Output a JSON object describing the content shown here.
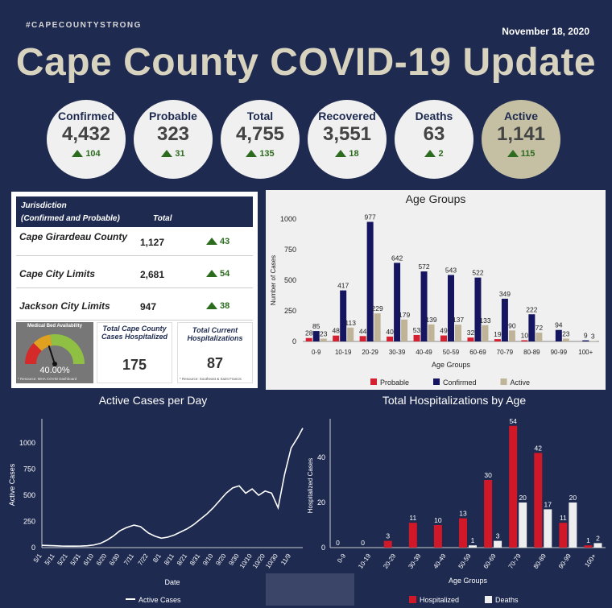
{
  "hashtag": "#CAPECOUNTYSTRONG",
  "date": "November 18, 2020",
  "title": "Cape County COVID-19 Update",
  "stats": [
    {
      "label": "Confirmed",
      "value": "4,432",
      "change": "104"
    },
    {
      "label": "Probable",
      "value": "323",
      "change": "31"
    },
    {
      "label": "Total",
      "value": "4,755",
      "change": "135"
    },
    {
      "label": "Recovered",
      "value": "3,551",
      "change": "18"
    },
    {
      "label": "Deaths",
      "value": "63",
      "change": "2"
    },
    {
      "label": "Active",
      "value": "1,141",
      "change": "115"
    }
  ],
  "jurisdiction": {
    "header1": "Jurisdiction",
    "header2": "(Confirmed and Probable)",
    "header_total": "Total",
    "rows": [
      {
        "name": "Cape Girardeau County",
        "total": "1,127",
        "change": "43"
      },
      {
        "name": "Cape City Limits",
        "total": "2,681",
        "change": "54"
      },
      {
        "name": "Jackson City Limits",
        "total": "947",
        "change": "38"
      }
    ],
    "gauge": {
      "title": "Medical Bed Availability",
      "value": "40.00%",
      "fraction": 0.4,
      "source": "* Resource: MHA COVID Dashboard"
    },
    "hosp_cape": {
      "title": "Total Cape County Cases Hospitalized",
      "value": "175"
    },
    "hosp_current": {
      "title": "Total Current Hospitalizations",
      "value": "87",
      "source": "* Resource: Southeast & Saint Francis"
    }
  },
  "chart_data": [
    {
      "type": "bar",
      "title": "Age Groups",
      "xlabel": "Age Groups",
      "ylabel": "Number of Cases",
      "ylim": [
        0,
        1000
      ],
      "yticks": [
        0,
        250,
        500,
        750,
        1000
      ],
      "categories": [
        "0-9",
        "10-19",
        "20-29",
        "30-39",
        "40-49",
        "50-59",
        "60-69",
        "70-79",
        "80-89",
        "90-99",
        "100+"
      ],
      "series": [
        {
          "name": "Probable",
          "color": "#d42030",
          "values": [
            28,
            48,
            44,
            40,
            53,
            49,
            32,
            19,
            10,
            null,
            null
          ]
        },
        {
          "name": "Confirmed",
          "color": "#161660",
          "values": [
            85,
            417,
            977,
            642,
            572,
            543,
            522,
            349,
            222,
            94,
            9
          ]
        },
        {
          "name": "Active",
          "color": "#c0b498",
          "values": [
            23,
            113,
            229,
            179,
            139,
            137,
            133,
            90,
            72,
            23,
            3
          ]
        }
      ],
      "legend": "bottom"
    },
    {
      "type": "line",
      "title": "Active Cases per Day",
      "xlabel": "Date",
      "ylabel": "Active Cases",
      "ylim": [
        0,
        1200
      ],
      "yticks": [
        0,
        250,
        500,
        750,
        1000
      ],
      "xticks": [
        "5/1",
        "5/11",
        "5/21",
        "5/31",
        "6/10",
        "6/20",
        "6/30",
        "7/11",
        "7/22",
        "8/1",
        "8/11",
        "8/21",
        "8/31",
        "9/10",
        "9/20",
        "9/30",
        "10/10",
        "10/20",
        "10/30",
        "11/9"
      ],
      "series": [
        {
          "name": "Active Cases",
          "color": "#ffffff",
          "x": [
            "5/1",
            "5/6",
            "5/11",
            "5/16",
            "5/21",
            "5/26",
            "5/31",
            "6/5",
            "6/10",
            "6/15",
            "6/20",
            "6/25",
            "6/30",
            "7/5",
            "7/11",
            "7/16",
            "7/22",
            "7/27",
            "8/1",
            "8/6",
            "8/11",
            "8/16",
            "8/21",
            "8/26",
            "8/31",
            "9/5",
            "9/10",
            "9/15",
            "9/20",
            "9/25",
            "9/30",
            "10/5",
            "10/10",
            "10/15",
            "10/20",
            "10/25",
            "10/30",
            "11/4",
            "11/9",
            "11/14",
            "11/18"
          ],
          "values": [
            22,
            20,
            18,
            15,
            14,
            14,
            15,
            18,
            25,
            40,
            70,
            110,
            160,
            190,
            215,
            200,
            140,
            110,
            90,
            100,
            120,
            150,
            180,
            220,
            270,
            320,
            380,
            450,
            520,
            570,
            590,
            520,
            560,
            500,
            540,
            520,
            380,
            700,
            950,
            1050,
            1141
          ]
        }
      ],
      "legend": "bottom"
    },
    {
      "type": "bar",
      "title": "Total Hospitalizations by Age",
      "xlabel": "Age Groups",
      "ylabel": "Hospitalized Cases",
      "ylim": [
        0,
        55
      ],
      "yticks": [
        0,
        20,
        40
      ],
      "categories": [
        "0-9",
        "10-19",
        "20-29",
        "30-39",
        "40-49",
        "50-59",
        "60-69",
        "70-79",
        "80-89",
        "90-99",
        "100+"
      ],
      "series": [
        {
          "name": "Hospitalized",
          "color": "#d01828",
          "values": [
            0,
            0,
            3,
            11,
            10,
            13,
            30,
            54,
            42,
            11,
            1
          ]
        },
        {
          "name": "Deaths",
          "color": "#eeeeee",
          "values": [
            null,
            null,
            null,
            null,
            null,
            1,
            3,
            20,
            17,
            20,
            2
          ]
        }
      ],
      "legend": "bottom"
    }
  ]
}
